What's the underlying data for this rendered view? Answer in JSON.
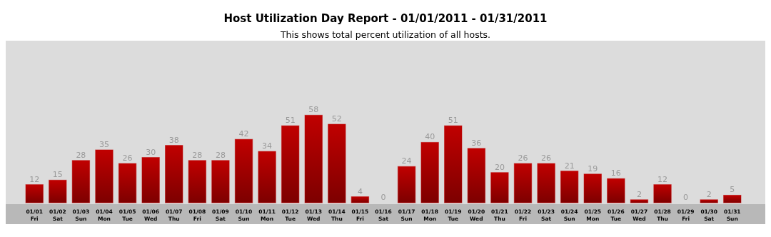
{
  "chart_data": {
    "type": "bar",
    "title": "Host Utilization Day Report - 01/01/2011 - 01/31/2011",
    "subtitle": "This shows total percent utilization of all hosts.",
    "categories": [
      "01/01\nFri",
      "01/02\nSat",
      "01/03\nSun",
      "01/04\nMon",
      "01/05\nTue",
      "01/06\nWed",
      "01/07\nThu",
      "01/08\nFri",
      "01/09\nSat",
      "01/10\nSun",
      "01/11\nMon",
      "01/12\nTue",
      "01/13\nWed",
      "01/14\nThu",
      "01/15\nFri",
      "01/16\nSat",
      "01/17\nSun",
      "01/18\nMon",
      "01/19\nTue",
      "01/20\nWed",
      "01/21\nThu",
      "01/22\nFri",
      "01/23\nSat",
      "01/24\nSun",
      "01/25\nMon",
      "01/26\nTue",
      "01/27\nWed",
      "01/28\nThu",
      "01/29\nFri",
      "01/30\nSat",
      "01/31\nSun"
    ],
    "values": [
      12,
      15,
      28,
      35,
      26,
      30,
      38,
      28,
      28,
      42,
      34,
      51,
      58,
      52,
      4,
      0,
      24,
      40,
      51,
      36,
      20,
      26,
      26,
      21,
      19,
      16,
      2,
      12,
      0,
      2,
      5
    ],
    "color": "#c00000",
    "data_labels": true
  }
}
